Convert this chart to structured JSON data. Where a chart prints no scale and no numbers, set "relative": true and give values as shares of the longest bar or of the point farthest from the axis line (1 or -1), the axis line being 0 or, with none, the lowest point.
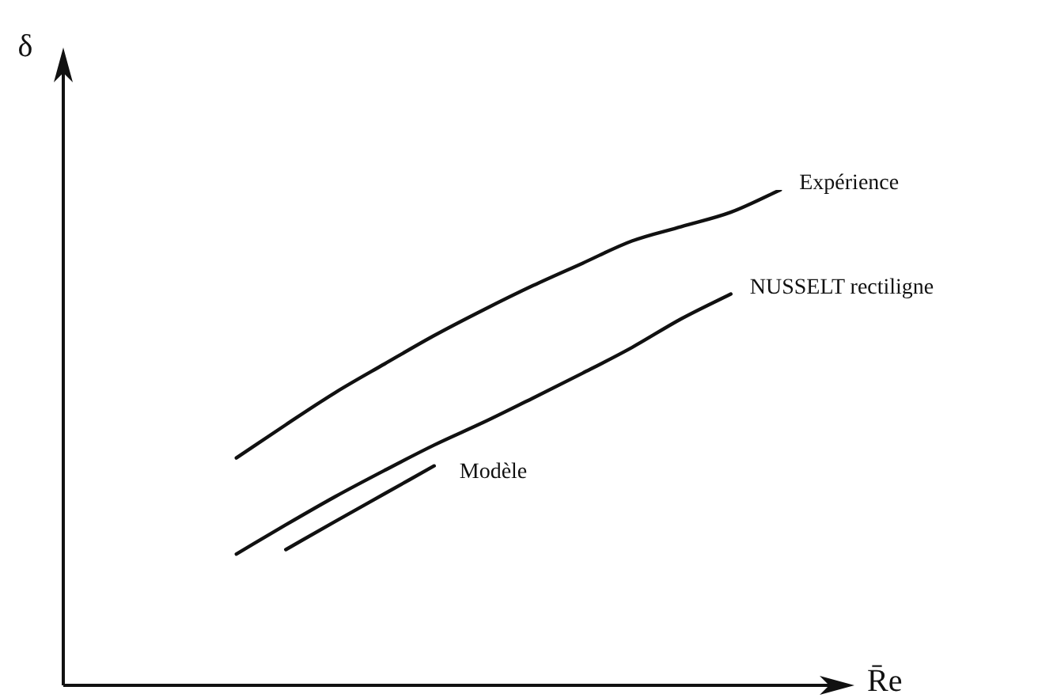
{
  "chart_data": {
    "type": "line",
    "relative": true,
    "xlabel": "R̄e",
    "ylabel": "δ",
    "legend": false,
    "marker": "none",
    "line_style": "solid",
    "categories": [
      null,
      null,
      null,
      null,
      null,
      null,
      null,
      null,
      null,
      null,
      null,
      null,
      null,
      null,
      null,
      null
    ],
    "series": [
      {
        "name": "Expérience",
        "color": "#111111",
        "values": [
          null,
          null,
          null,
          0.459,
          0.526,
          0.591,
          0.649,
          0.706,
          0.758,
          0.807,
          0.852,
          0.897,
          0.926,
          0.955,
          1,
          null
        ]
      },
      {
        "name": "NUSSELT rectiligne",
        "color": "#111111",
        "values": [
          null,
          null,
          null,
          0.265,
          0.324,
          0.381,
          0.434,
          0.485,
          0.531,
          0.58,
          0.63,
          0.682,
          0.74,
          0.79,
          null,
          null
        ]
      },
      {
        "name": "Modèle",
        "color": "#111111",
        "values": [
          null,
          null,
          null,
          null,
          0.274,
          0.331,
          0.387,
          0.443,
          null,
          null,
          null,
          null,
          null,
          null,
          null,
          null
        ]
      }
    ]
  }
}
